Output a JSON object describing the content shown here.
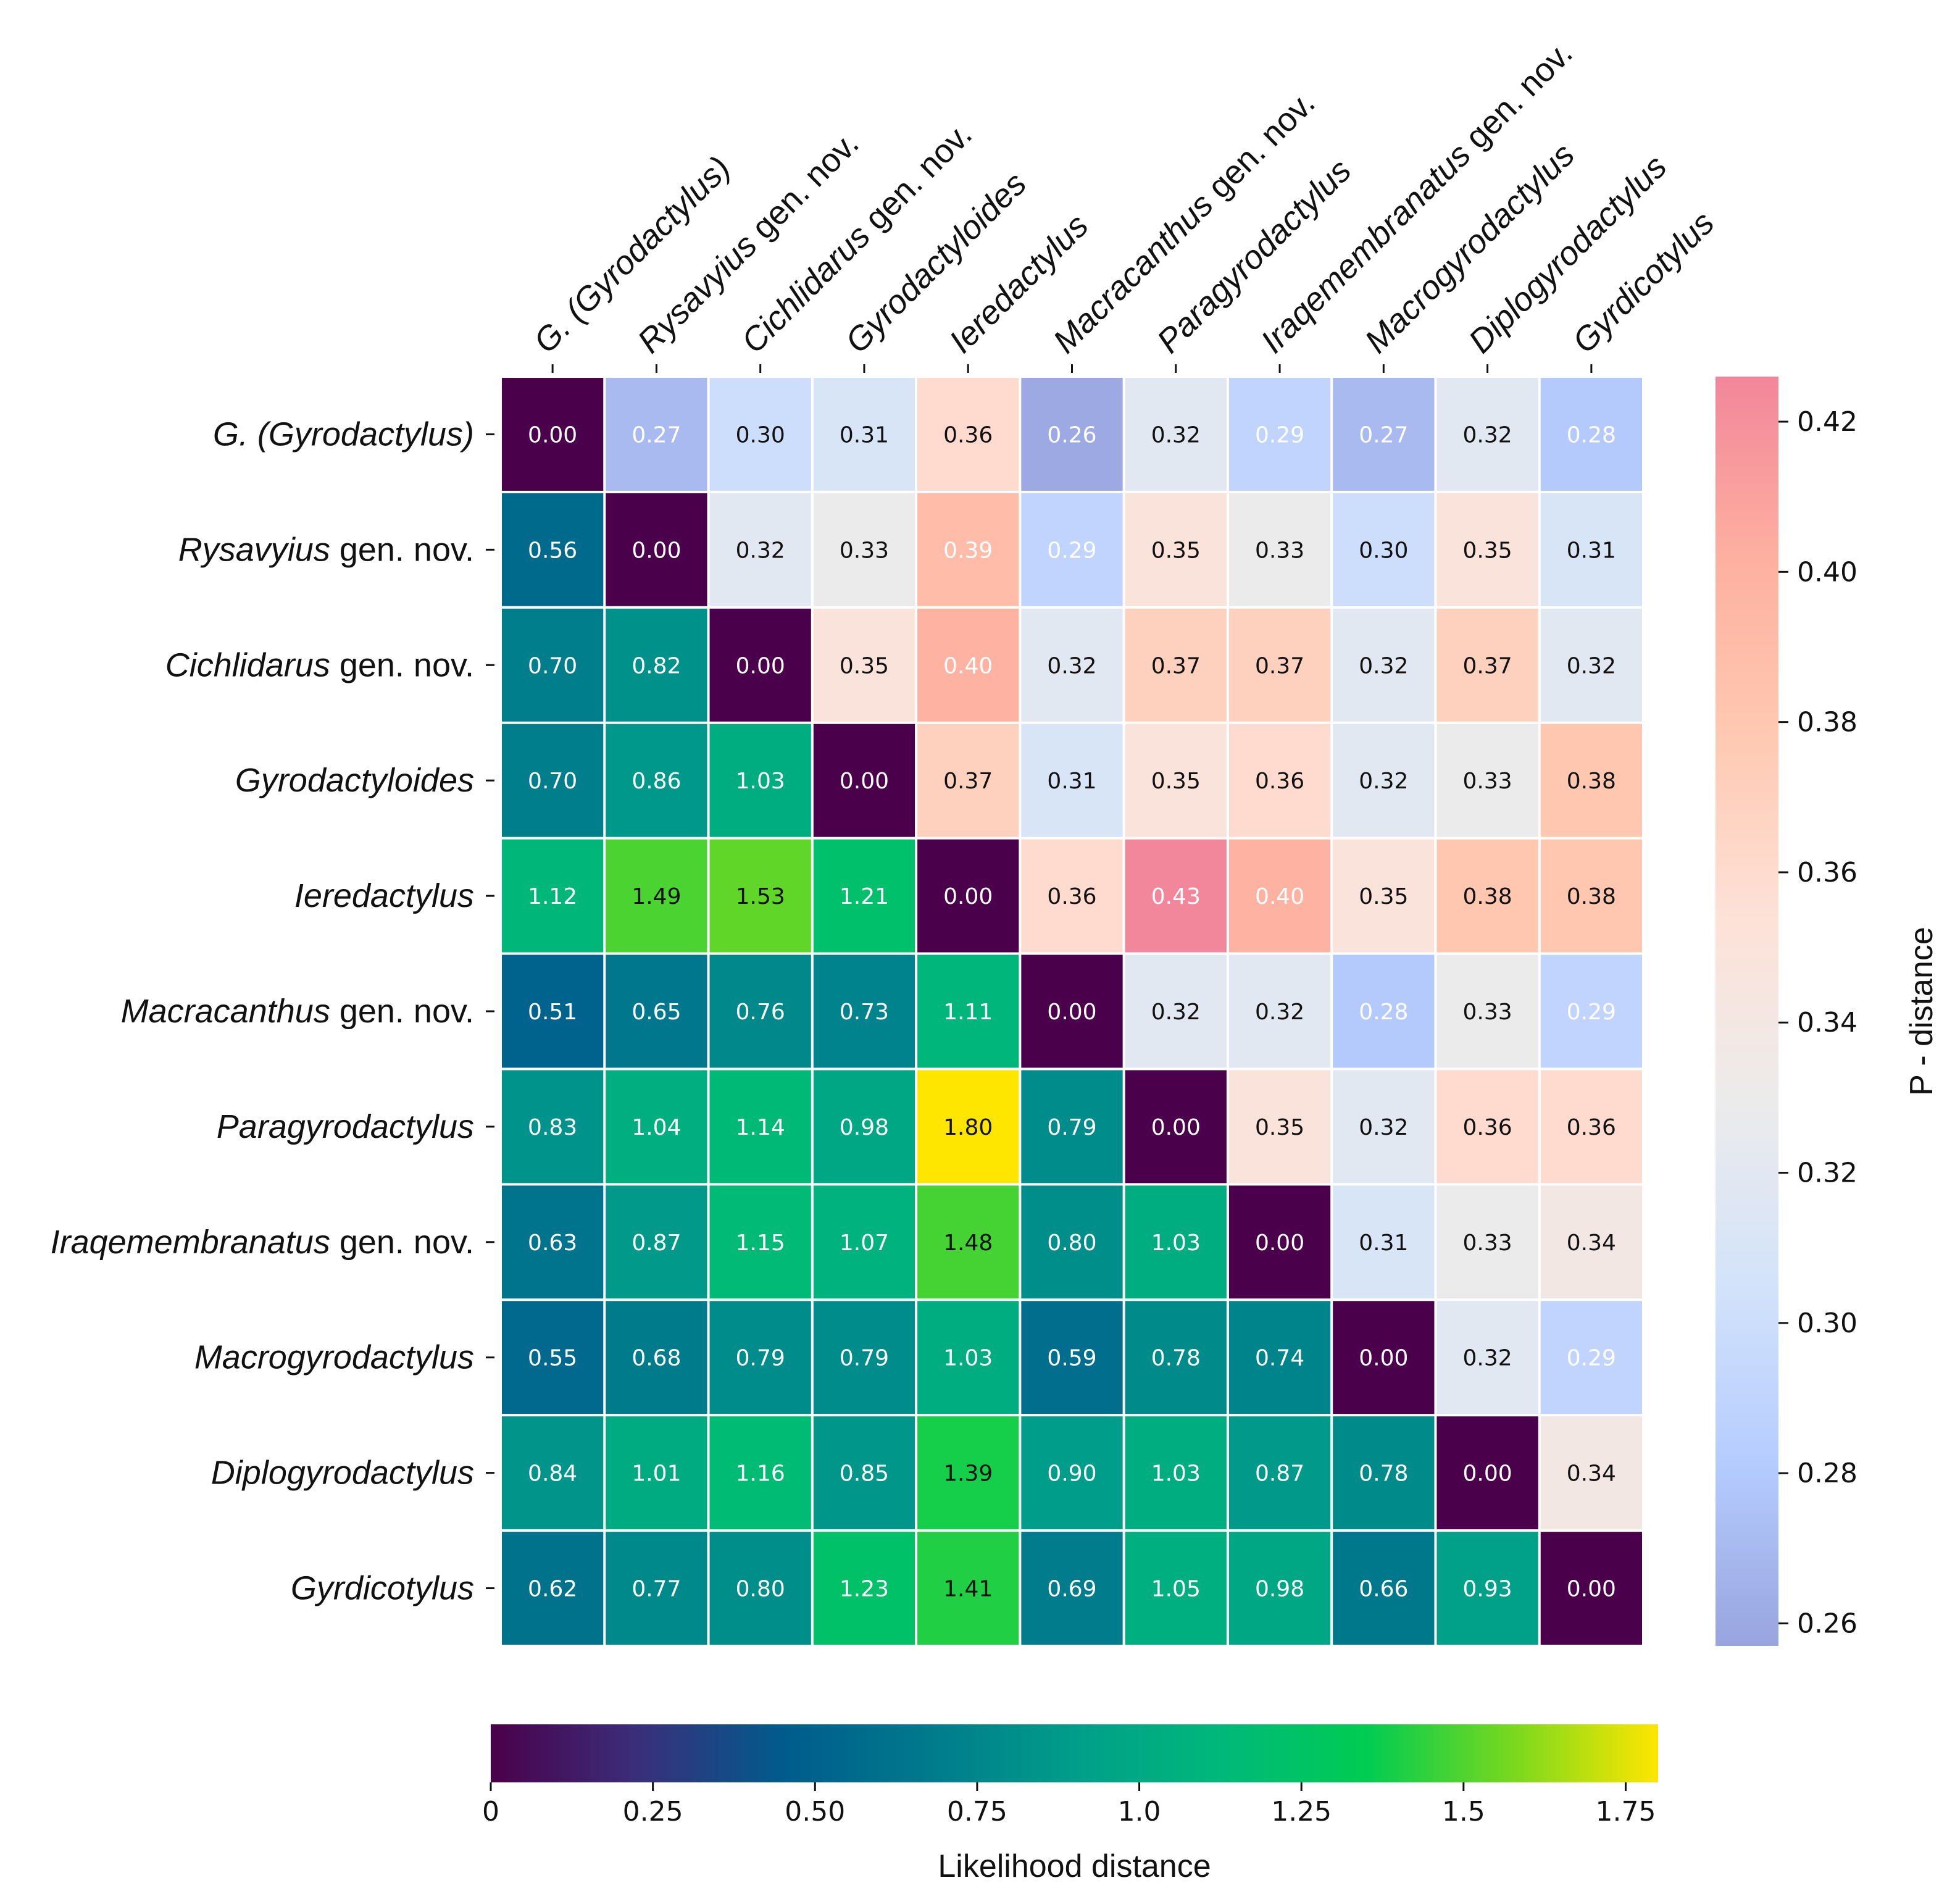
{
  "chart_data": {
    "type": "heatmap",
    "taxa": [
      {
        "name": "G. (Gyrodactylus)",
        "suffix": ""
      },
      {
        "name": "Rysavyius",
        "suffix": " gen. nov."
      },
      {
        "name": "Cichlidarus",
        "suffix": " gen. nov."
      },
      {
        "name": "Gyrodactyloides",
        "suffix": ""
      },
      {
        "name": "Ieredactylus",
        "suffix": ""
      },
      {
        "name": "Macracanthus",
        "suffix": " gen. nov."
      },
      {
        "name": "Paragyrodactylus",
        "suffix": ""
      },
      {
        "name": "Iraqemembranatus",
        "suffix": " gen. nov."
      },
      {
        "name": "Macrogyrodactylus",
        "suffix": ""
      },
      {
        "name": "Diplogyrodactylus",
        "suffix": ""
      },
      {
        "name": "Gyrdicotylus",
        "suffix": ""
      }
    ],
    "matrix_note_lower": "Likelihood distance",
    "matrix_note_upper": "P - distance",
    "values": [
      [
        "0.00",
        "0.27",
        "0.30",
        "0.31",
        "0.36",
        "0.26",
        "0.32",
        "0.29",
        "0.27",
        "0.32",
        "0.28"
      ],
      [
        "0.56",
        "0.00",
        "0.32",
        "0.33",
        "0.39",
        "0.29",
        "0.35",
        "0.33",
        "0.30",
        "0.35",
        "0.31"
      ],
      [
        "0.70",
        "0.82",
        "0.00",
        "0.35",
        "0.40",
        "0.32",
        "0.37",
        "0.37",
        "0.32",
        "0.37",
        "0.32"
      ],
      [
        "0.70",
        "0.86",
        "1.03",
        "0.00",
        "0.37",
        "0.31",
        "0.35",
        "0.36",
        "0.32",
        "0.33",
        "0.38"
      ],
      [
        "1.12",
        "1.49",
        "1.53",
        "1.21",
        "0.00",
        "0.36",
        "0.43",
        "0.40",
        "0.35",
        "0.38",
        "0.38"
      ],
      [
        "0.51",
        "0.65",
        "0.76",
        "0.73",
        "1.11",
        "0.00",
        "0.32",
        "0.32",
        "0.28",
        "0.33",
        "0.29"
      ],
      [
        "0.83",
        "1.04",
        "1.14",
        "0.98",
        "1.80",
        "0.79",
        "0.00",
        "0.35",
        "0.32",
        "0.36",
        "0.36"
      ],
      [
        "0.63",
        "0.87",
        "1.15",
        "1.07",
        "1.48",
        "0.80",
        "1.03",
        "0.00",
        "0.31",
        "0.33",
        "0.34"
      ],
      [
        "0.55",
        "0.68",
        "0.79",
        "0.79",
        "1.03",
        "0.59",
        "0.78",
        "0.74",
        "0.00",
        "0.32",
        "0.29"
      ],
      [
        "0.84",
        "1.01",
        "1.16",
        "0.85",
        "1.39",
        "0.90",
        "1.03",
        "0.87",
        "0.78",
        "0.00",
        "0.34"
      ],
      [
        "0.62",
        "0.77",
        "0.80",
        "1.23",
        "1.41",
        "0.69",
        "1.05",
        "0.98",
        "0.66",
        "0.93",
        "0.00"
      ]
    ],
    "colorbar_upper": {
      "label": "P - distance",
      "range": [
        0.257,
        0.426
      ],
      "ticks": [
        "0.26",
        "0.28",
        "0.30",
        "0.32",
        "0.34",
        "0.36",
        "0.38",
        "0.40",
        "0.42"
      ],
      "orientation": "vertical, right",
      "colors": [
        "#98a4de",
        "#b5ccff",
        "#d3e3fa",
        "#ecebeb",
        "#fde2d8",
        "#ffc9b2",
        "#feb0a0",
        "#f2869a"
      ]
    },
    "colorbar_lower": {
      "label": "Likelihood distance",
      "range": [
        0,
        1.8
      ],
      "ticks": [
        "0",
        "0.25",
        "0.50",
        "0.75",
        "1.0",
        "1.25",
        "1.5",
        "1.75"
      ],
      "orientation": "horizontal, bottom",
      "colors": [
        "#4b004b",
        "#3a2e7a",
        "#005b8d",
        "#007a8c",
        "#009e8a",
        "#00b87a",
        "#00cc52",
        "#78d81e",
        "#ffe600"
      ]
    },
    "diagonal_color": "#4b004b"
  }
}
